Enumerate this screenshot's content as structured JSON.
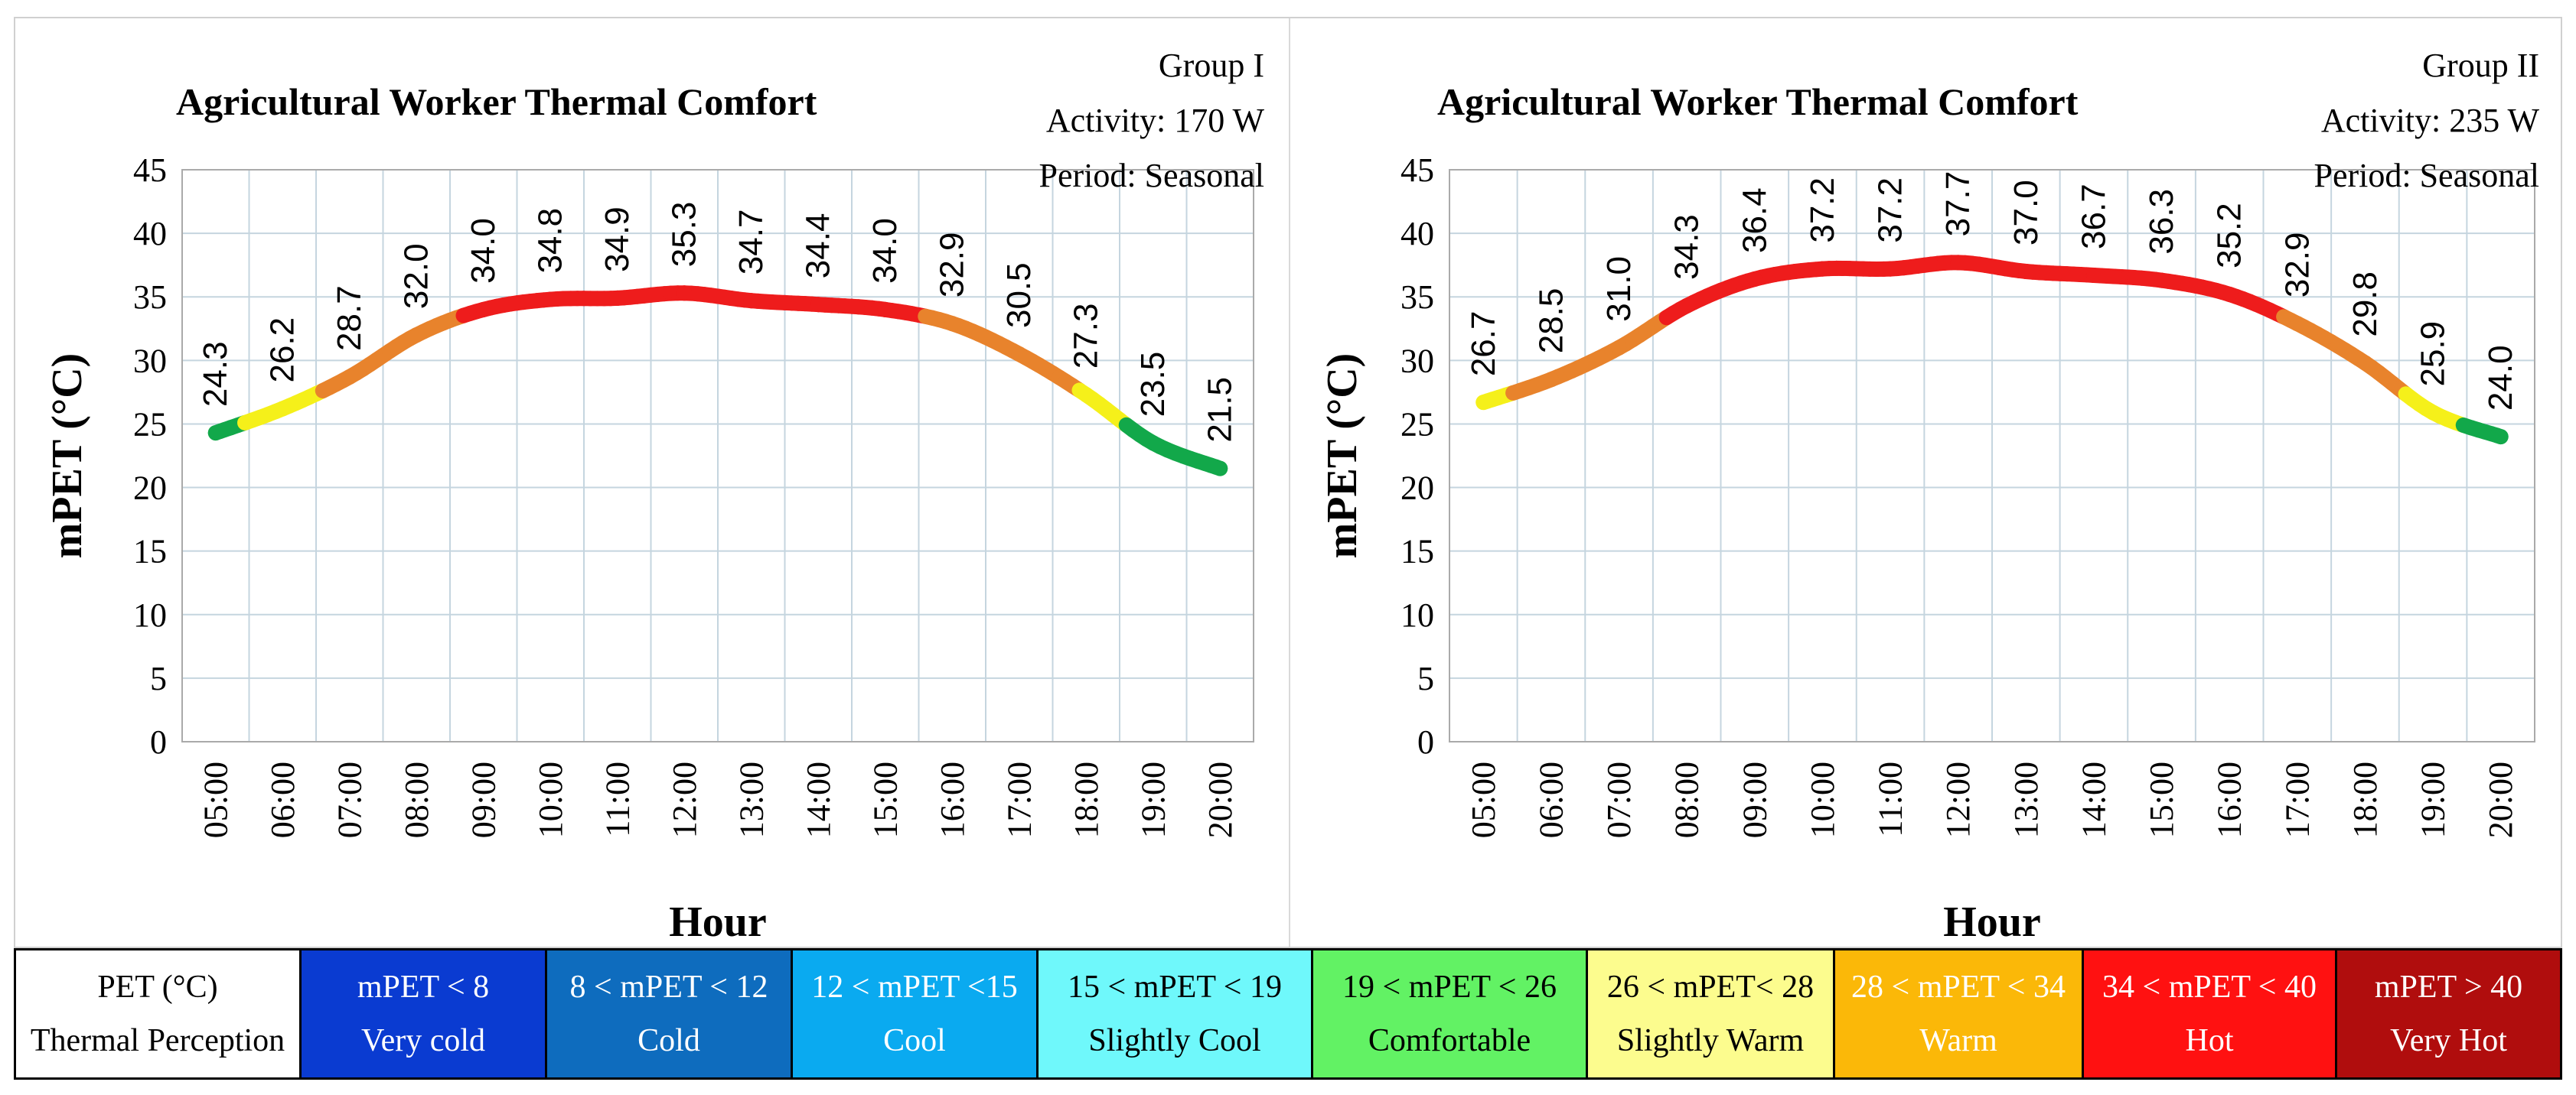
{
  "chart_data": [
    {
      "type": "line",
      "title": "Agricultural Worker Thermal Comfort",
      "info": {
        "group": "Group I",
        "activity": "Activity: 170 W",
        "period": "Period: Seasonal"
      },
      "xlabel": "Hour",
      "ylabel": "mPET (°C)",
      "ylim": [
        0,
        45
      ],
      "yticks": [
        0,
        5,
        10,
        15,
        20,
        25,
        30,
        35,
        40,
        45
      ],
      "grid": true,
      "categories": [
        "05:00",
        "06:00",
        "07:00",
        "08:00",
        "09:00",
        "10:00",
        "11:00",
        "12:00",
        "13:00",
        "14:00",
        "15:00",
        "16:00",
        "17:00",
        "18:00",
        "19:00",
        "20:00"
      ],
      "values": [
        24.3,
        26.2,
        28.7,
        32.0,
        34.0,
        34.8,
        34.9,
        35.3,
        34.7,
        34.4,
        34.0,
        32.9,
        30.5,
        27.3,
        23.5,
        21.5
      ],
      "labels": [
        "24.3",
        "26.2",
        "28.7",
        "32.0",
        "34.0",
        "34.8",
        "34.9",
        "35.3",
        "34.7",
        "34.4",
        "34.0",
        "32.9",
        "30.5",
        "27.3",
        "23.5",
        "21.5"
      ]
    },
    {
      "type": "line",
      "title": "Agricultural Worker Thermal Comfort",
      "info": {
        "group": "Group II",
        "activity": "Activity: 235 W",
        "period": "Period: Seasonal"
      },
      "xlabel": "Hour",
      "ylabel": "mPET (°C)",
      "ylim": [
        0,
        45
      ],
      "yticks": [
        0,
        5,
        10,
        15,
        20,
        25,
        30,
        35,
        40,
        45
      ],
      "grid": true,
      "categories": [
        "05:00",
        "06:00",
        "07:00",
        "08:00",
        "09:00",
        "10:00",
        "11:00",
        "12:00",
        "13:00",
        "14:00",
        "15:00",
        "16:00",
        "17:00",
        "18:00",
        "19:00",
        "20:00"
      ],
      "values": [
        26.7,
        28.5,
        31.0,
        34.3,
        36.4,
        37.2,
        37.2,
        37.7,
        37.0,
        36.7,
        36.3,
        35.2,
        32.9,
        29.8,
        25.9,
        24.0
      ],
      "labels": [
        "26.7",
        "28.5",
        "31.0",
        "34.3",
        "36.4",
        "37.2",
        "37.2",
        "37.7",
        "37.0",
        "36.7",
        "36.3",
        "35.2",
        "32.9",
        "29.8",
        "25.9",
        "24.0"
      ]
    }
  ],
  "legend": {
    "header": {
      "line1": "PET (°C)",
      "line2": "Thermal Perception"
    },
    "classes": [
      {
        "range": "mPET < 8",
        "label": "Very cold",
        "min": -100,
        "max": 8,
        "bg": "#0a3bd1",
        "fg": "#ffffff"
      },
      {
        "range": "8 < mPET < 12",
        "label": "Cold",
        "min": 8,
        "max": 12,
        "bg": "#0e6cbe",
        "fg": "#ffffff"
      },
      {
        "range": "12 < mPET <15",
        "label": "Cool",
        "min": 12,
        "max": 15,
        "bg": "#0aaaf0",
        "fg": "#ffffff"
      },
      {
        "range": "15 < mPET < 19",
        "label": "Slightly Cool",
        "min": 15,
        "max": 19,
        "bg": "#6ff8fb",
        "fg": "#000000"
      },
      {
        "range": "19 < mPET < 26",
        "label": "Comfortable",
        "min": 19,
        "max": 26,
        "bg": "#62f264",
        "fg": "#000000"
      },
      {
        "range": "26 < mPET< 28",
        "label": "Slightly Warm",
        "min": 26,
        "max": 28,
        "bg": "#fcfc8e",
        "fg": "#000000"
      },
      {
        "range": "28 < mPET < 34",
        "label": "Warm",
        "min": 28,
        "max": 34,
        "bg": "#fbb808",
        "fg": "#ffffff"
      },
      {
        "range": "34 < mPET < 40",
        "label": "Hot",
        "min": 34,
        "max": 40,
        "bg": "#ff1111",
        "fg": "#ffffff"
      },
      {
        "range": "mPET > 40",
        "label": "Very Hot",
        "min": 40,
        "max": 100,
        "bg": "#b00d0d",
        "fg": "#ffffff"
      }
    ]
  },
  "colors": {
    "curve_comfortable": "#12a84a",
    "curve_slightly_warm": "#f5f01a",
    "curve_warm": "#e8832c",
    "curve_hot": "#ee1c1c",
    "grid": "#c5d5df",
    "axis": "#aaaaaa"
  }
}
